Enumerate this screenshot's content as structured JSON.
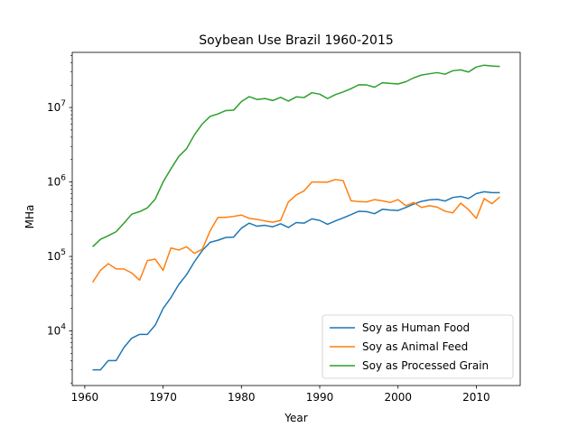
{
  "chart_data": {
    "type": "line",
    "title": "Soybean Use Brazil 1960-2015",
    "xlabel": "Year",
    "ylabel": "MHa",
    "yscale": "log",
    "xlim": [
      1958.4,
      2015.6
    ],
    "ylim": [
      1850,
      55000000
    ],
    "grid": false,
    "legend_position": "bottom-right",
    "x_ticks": [
      1960,
      1970,
      1980,
      1990,
      2000,
      2010
    ],
    "x_tick_labels": [
      "1960",
      "1970",
      "1980",
      "1990",
      "2000",
      "2010"
    ],
    "y_ticks": [
      10000,
      100000,
      1000000,
      10000000
    ],
    "y_tick_labels": [
      {
        "base": "10",
        "exp": "4"
      },
      {
        "base": "10",
        "exp": "5"
      },
      {
        "base": "10",
        "exp": "6"
      },
      {
        "base": "10",
        "exp": "7"
      }
    ],
    "x": [
      1961,
      1962,
      1963,
      1964,
      1965,
      1966,
      1967,
      1968,
      1969,
      1970,
      1971,
      1972,
      1973,
      1974,
      1975,
      1976,
      1977,
      1978,
      1979,
      1980,
      1981,
      1982,
      1983,
      1984,
      1985,
      1986,
      1987,
      1988,
      1989,
      1990,
      1991,
      1992,
      1993,
      1994,
      1995,
      1996,
      1997,
      1998,
      1999,
      2000,
      2001,
      2002,
      2003,
      2004,
      2005,
      2006,
      2007,
      2008,
      2009,
      2010,
      2011,
      2012,
      2013
    ],
    "series": [
      {
        "name": "Soy as Human Food",
        "color": "#1f77b4",
        "values": [
          3000,
          3000,
          4000,
          4000,
          6000,
          8000,
          9000,
          9000,
          12000,
          20000,
          28000,
          42000,
          57000,
          85000,
          120000,
          155000,
          165000,
          180000,
          182000,
          240000,
          280000,
          255000,
          262000,
          250000,
          275000,
          245000,
          285000,
          280000,
          320000,
          305000,
          270000,
          300000,
          330000,
          365000,
          405000,
          400000,
          375000,
          430000,
          420000,
          415000,
          455000,
          505000,
          550000,
          575000,
          585000,
          555000,
          620000,
          640000,
          600000,
          700000,
          740000,
          720000,
          720000
        ]
      },
      {
        "name": "Soy as Animal Feed",
        "color": "#ff7f0e",
        "values": [
          45000,
          65000,
          80000,
          68000,
          68000,
          60000,
          48000,
          88000,
          92000,
          65000,
          130000,
          122000,
          135000,
          110000,
          125000,
          220000,
          335000,
          335000,
          345000,
          360000,
          325000,
          315000,
          300000,
          288000,
          305000,
          540000,
          670000,
          760000,
          1000000,
          1000000,
          995000,
          1080000,
          1040000,
          560000,
          545000,
          540000,
          580000,
          560000,
          530000,
          580000,
          480000,
          530000,
          455000,
          480000,
          460000,
          405000,
          385000,
          520000,
          425000,
          325000,
          600000,
          510000,
          630000
        ]
      },
      {
        "name": "Soy as Processed Grain",
        "color": "#2ca02c",
        "values": [
          135000,
          170000,
          190000,
          215000,
          280000,
          370000,
          400000,
          450000,
          590000,
          1000000,
          1500000,
          2200000,
          2800000,
          4300000,
          6000000,
          7600000,
          8200000,
          9100000,
          9200000,
          12000000,
          14000000,
          12800000,
          13200000,
          12400000,
          13700000,
          12200000,
          13900000,
          13600000,
          15800000,
          15100000,
          13200000,
          14900000,
          16200000,
          17900000,
          20200000,
          20100000,
          18700000,
          21500000,
          21100000,
          20700000,
          22200000,
          25000000,
          27300000,
          28400000,
          29400000,
          28000000,
          31200000,
          32000000,
          30000000,
          35000000,
          37000000,
          36000000,
          35500000
        ]
      }
    ]
  }
}
